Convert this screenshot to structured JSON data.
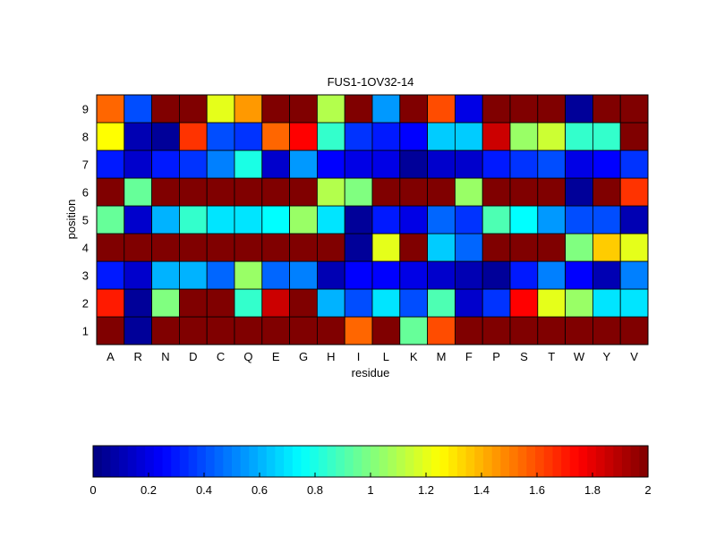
{
  "chart_data": {
    "type": "heatmap",
    "title": "FUS1-1OV32-14",
    "xlabel": "residue",
    "ylabel": "position",
    "x_categories": [
      "A",
      "R",
      "N",
      "D",
      "C",
      "Q",
      "E",
      "G",
      "H",
      "I",
      "L",
      "K",
      "M",
      "F",
      "P",
      "S",
      "T",
      "W",
      "Y",
      "V"
    ],
    "y_categories": [
      "1",
      "2",
      "3",
      "4",
      "5",
      "6",
      "7",
      "8",
      "9"
    ],
    "values": [
      [
        2.0,
        0.05,
        2.0,
        2.0,
        2.0,
        2.0,
        2.0,
        2.0,
        2.0,
        1.55,
        2.0,
        0.95,
        1.6,
        2.0,
        2.0,
        2.0,
        2.0,
        2.0,
        2.0,
        2.0
      ],
      [
        1.7,
        0.05,
        1.0,
        2.0,
        2.0,
        0.85,
        1.85,
        2.0,
        0.6,
        0.4,
        0.7,
        0.4,
        0.9,
        0.15,
        0.35,
        1.75,
        1.2,
        1.05,
        0.7,
        0.7
      ],
      [
        0.3,
        0.15,
        0.6,
        0.6,
        0.45,
        1.05,
        0.45,
        0.5,
        0.1,
        0.25,
        0.25,
        0.2,
        0.15,
        0.1,
        0.05,
        0.3,
        0.5,
        0.25,
        0.1,
        0.5
      ],
      [
        2.0,
        2.0,
        2.0,
        2.0,
        2.0,
        2.0,
        2.0,
        2.0,
        2.0,
        0.05,
        1.2,
        2.0,
        0.65,
        0.45,
        2.0,
        2.0,
        2.0,
        1.0,
        1.35,
        1.2
      ],
      [
        0.95,
        0.15,
        0.6,
        0.85,
        0.7,
        0.7,
        0.75,
        1.05,
        0.7,
        0.05,
        0.3,
        0.2,
        0.45,
        0.35,
        0.9,
        0.75,
        0.55,
        0.4,
        0.4,
        0.1
      ],
      [
        2.0,
        0.95,
        2.0,
        2.0,
        2.0,
        2.0,
        2.0,
        2.0,
        1.1,
        1.0,
        2.0,
        2.0,
        2.0,
        1.05,
        2.0,
        2.0,
        2.0,
        0.05,
        2.0,
        1.65
      ],
      [
        0.3,
        0.15,
        0.3,
        0.35,
        0.5,
        0.8,
        0.15,
        0.55,
        0.25,
        0.2,
        0.2,
        0.05,
        0.15,
        0.15,
        0.3,
        0.35,
        0.4,
        0.2,
        0.25,
        0.35
      ],
      [
        1.25,
        0.1,
        0.05,
        1.65,
        0.4,
        0.35,
        1.55,
        1.75,
        0.85,
        0.35,
        0.3,
        0.25,
        0.65,
        0.65,
        1.85,
        1.05,
        1.15,
        0.85,
        0.85,
        2.0
      ],
      [
        1.55,
        0.4,
        2.0,
        2.0,
        1.2,
        1.45,
        2.0,
        2.0,
        1.1,
        2.0,
        0.55,
        2.0,
        1.6,
        0.2,
        2.0,
        2.0,
        2.0,
        0.05,
        2.0,
        2.0
      ]
    ],
    "colormap": "jet",
    "clim": [
      0,
      2
    ],
    "colorbar": {
      "orientation": "horizontal",
      "placement": "bottom",
      "ticks": [
        0,
        0.2,
        0.4,
        0.6,
        0.8,
        1,
        1.2,
        1.4,
        1.6,
        1.8,
        2
      ],
      "tick_labels": [
        "0",
        "0.2",
        "0.4",
        "0.6",
        "0.8",
        "1",
        "1.2",
        "1.4",
        "1.6",
        "1.8",
        "2"
      ]
    },
    "grid": false
  }
}
